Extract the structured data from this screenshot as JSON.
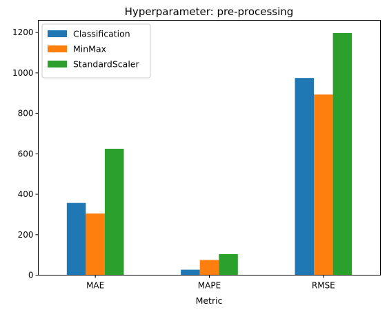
{
  "chart_data": {
    "type": "bar",
    "title": "Hyperparameter: pre-processing",
    "xlabel": "Metric",
    "ylabel": "",
    "categories": [
      "MAE",
      "MAPE",
      "RMSE"
    ],
    "series": [
      {
        "name": "Classification",
        "color": "#1f77b4",
        "values": [
          357,
          27,
          975
        ]
      },
      {
        "name": "MinMax",
        "color": "#ff7f0e",
        "values": [
          305,
          75,
          893
        ]
      },
      {
        "name": "StandardScaler",
        "color": "#2ca02c",
        "values": [
          625,
          104,
          1197
        ]
      }
    ],
    "ylim": [
      0,
      1260
    ],
    "yticks": [
      0,
      200,
      400,
      600,
      800,
      1000,
      1200
    ],
    "grid": false,
    "legend_position": "top-left"
  }
}
